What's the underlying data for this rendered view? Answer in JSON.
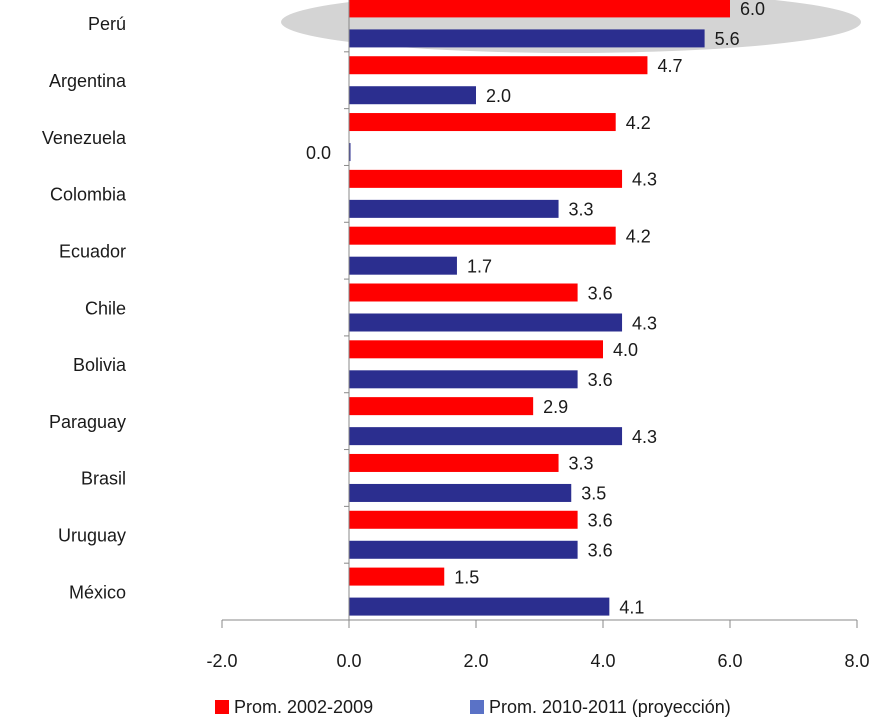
{
  "chart_data": {
    "type": "hbar",
    "categories": [
      "Perú",
      "Argentina",
      "Venezuela",
      "Colombia",
      "Ecuador",
      "Chile",
      "Bolivia",
      "Paraguay",
      "Brasil",
      "Uruguay",
      "México"
    ],
    "series": [
      {
        "name": "Prom. 2002-2009",
        "color": "#ff0000",
        "values": [
          6.0,
          4.7,
          4.2,
          4.3,
          4.2,
          3.6,
          4.0,
          2.9,
          3.3,
          3.6,
          1.5
        ],
        "value_labels": [
          "6.0",
          "4.7",
          "4.2",
          "4.3",
          "4.2",
          "3.6",
          "4.0",
          "2.9",
          "3.3",
          "3.6",
          "1.5"
        ]
      },
      {
        "name": "Prom. 2010-2011 (proyección)",
        "color": "#2b2e8f",
        "values": [
          5.6,
          2.0,
          0.0,
          3.3,
          1.7,
          4.3,
          3.6,
          4.3,
          3.5,
          3.6,
          4.1
        ],
        "value_labels": [
          "5.6",
          "2.0",
          "0.0",
          "3.3",
          "1.7",
          "4.3",
          "3.6",
          "4.3",
          "3.5",
          "3.6",
          "4.1"
        ]
      }
    ],
    "xlim": [
      -2,
      8
    ],
    "xticks": [
      {
        "value": -2,
        "label": "-2.0"
      },
      {
        "value": 0,
        "label": "0.0"
      },
      {
        "value": 2,
        "label": "2.0"
      },
      {
        "value": 4,
        "label": "4.0"
      },
      {
        "value": 6,
        "label": "6.0"
      },
      {
        "value": 8,
        "label": "8.0"
      }
    ],
    "legend": "bottom"
  }
}
